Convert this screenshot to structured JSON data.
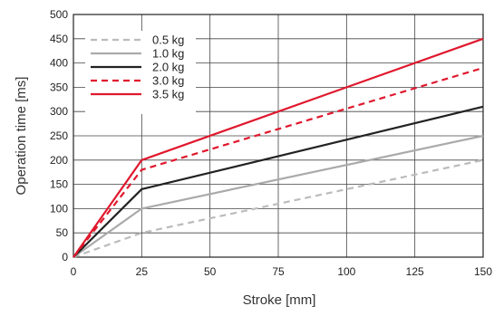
{
  "chart_data": {
    "type": "line",
    "title": "",
    "xlabel": "Stroke [mm]",
    "ylabel": "Operation time [ms]",
    "xlim": [
      0,
      150
    ],
    "ylim": [
      0,
      500
    ],
    "xticks": [
      0,
      25,
      50,
      75,
      100,
      125,
      150
    ],
    "yticks": [
      0,
      50,
      100,
      150,
      200,
      250,
      300,
      350,
      400,
      450,
      500
    ],
    "grid": true,
    "legend_position": "top-left",
    "x": [
      0,
      25,
      150
    ],
    "series": [
      {
        "name": "0.5 kg",
        "values": [
          0,
          50,
          200
        ],
        "color": "#bbbbbb",
        "dashed": true
      },
      {
        "name": "1.0 kg",
        "values": [
          0,
          100,
          250
        ],
        "color": "#aaaaaa",
        "dashed": false
      },
      {
        "name": "2.0 kg",
        "values": [
          0,
          140,
          310
        ],
        "color": "#222222",
        "dashed": false
      },
      {
        "name": "3.0 kg",
        "values": [
          0,
          180,
          390
        ],
        "color": "#e0182d",
        "dashed": true
      },
      {
        "name": "3.5 kg",
        "values": [
          0,
          200,
          450
        ],
        "color": "#e0182d",
        "dashed": false
      }
    ]
  }
}
